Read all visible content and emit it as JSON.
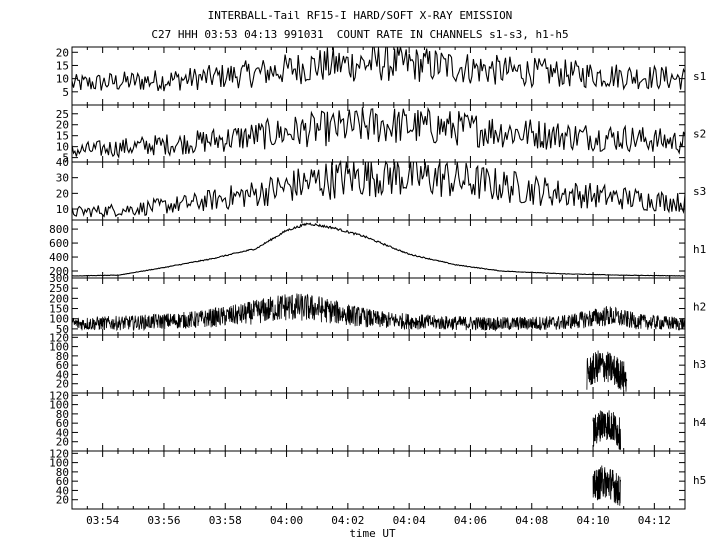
{
  "header": {
    "title": "INTERBALL-Tail RF15-I HARD/SOFT X-RAY EMISSION",
    "subtitle": "C27 HHH 03:53 04:13 991031  COUNT RATE IN CHANNELS s1-s3, h1-h5"
  },
  "chart_data": {
    "type": "line",
    "xlabel": "time UT",
    "x_ticks": [
      "03:54",
      "03:56",
      "03:58",
      "04:00",
      "04:02",
      "04:04",
      "04:06",
      "04:08",
      "04:10",
      "04:12"
    ],
    "x_range_min": [
      53.0,
      73.0
    ],
    "panels": [
      {
        "name": "s1",
        "ylim": [
          0,
          22
        ],
        "yticks": [
          5,
          10,
          15,
          20
        ],
        "approx_series": {
          "x_min": [
            53,
            55,
            57,
            59,
            61,
            63,
            65,
            67,
            69,
            71,
            73
          ],
          "y": [
            8,
            9,
            10,
            12,
            15,
            16,
            15,
            13,
            12,
            11,
            10
          ]
        }
      },
      {
        "name": "s2",
        "ylim": [
          3,
          29
        ],
        "yticks": [
          5,
          10,
          15,
          20,
          25
        ],
        "approx_series": {
          "x_min": [
            53,
            55,
            57,
            59,
            61,
            63,
            65,
            67,
            69,
            71,
            73
          ],
          "y": [
            8,
            10,
            12,
            15,
            18,
            20,
            19,
            17,
            15,
            14,
            12
          ]
        }
      },
      {
        "name": "s3",
        "ylim": [
          3,
          40
        ],
        "yticks": [
          10,
          20,
          30,
          40
        ],
        "approx_series": {
          "x_min": [
            53,
            55,
            57,
            59,
            61,
            63,
            65,
            67,
            69,
            71,
            73
          ],
          "y": [
            8,
            10,
            14,
            20,
            28,
            32,
            30,
            25,
            20,
            17,
            14
          ]
        }
      },
      {
        "name": "h1",
        "ylim": [
          100,
          930
        ],
        "yticks": [
          200,
          400,
          600,
          800
        ],
        "approx_series": {
          "x_min": [
            53,
            54.5,
            56,
            57.5,
            59,
            60,
            60.7,
            61.5,
            62.5,
            64,
            65.5,
            67,
            69,
            71,
            73
          ],
          "y": [
            130,
            140,
            250,
            370,
            520,
            780,
            880,
            820,
            700,
            440,
            290,
            200,
            160,
            140,
            130
          ]
        }
      },
      {
        "name": "h2",
        "ylim": [
          20,
          300
        ],
        "yticks": [
          50,
          100,
          150,
          200,
          250,
          300
        ],
        "approx_series": {
          "x_min": [
            53,
            55,
            57,
            58.5,
            60,
            61,
            62,
            63,
            65,
            67,
            69,
            70.5,
            71.5,
            73
          ],
          "y": [
            75,
            80,
            95,
            120,
            160,
            150,
            120,
            95,
            80,
            75,
            80,
            115,
            85,
            75
          ]
        }
      },
      {
        "name": "h3",
        "ylim": [
          0,
          125
        ],
        "yticks": [
          20,
          40,
          60,
          80,
          100,
          120
        ],
        "approx_series": {
          "x_min": [
            69.8,
            70.2,
            70.5,
            70.8,
            71.1
          ],
          "y": [
            40,
            60,
            55,
            45,
            30
          ]
        }
      },
      {
        "name": "h4",
        "ylim": [
          0,
          125
        ],
        "yticks": [
          20,
          40,
          60,
          80,
          100,
          120
        ],
        "approx_series": {
          "x_min": [
            70.0,
            70.3,
            70.6,
            70.9
          ],
          "y": [
            40,
            60,
            55,
            35
          ]
        }
      },
      {
        "name": "h5",
        "ylim": [
          0,
          125
        ],
        "yticks": [
          20,
          40,
          60,
          80,
          100,
          120
        ],
        "approx_series": {
          "x_min": [
            70.0,
            70.3,
            70.6,
            70.9
          ],
          "y": [
            45,
            60,
            55,
            35
          ]
        }
      }
    ]
  }
}
